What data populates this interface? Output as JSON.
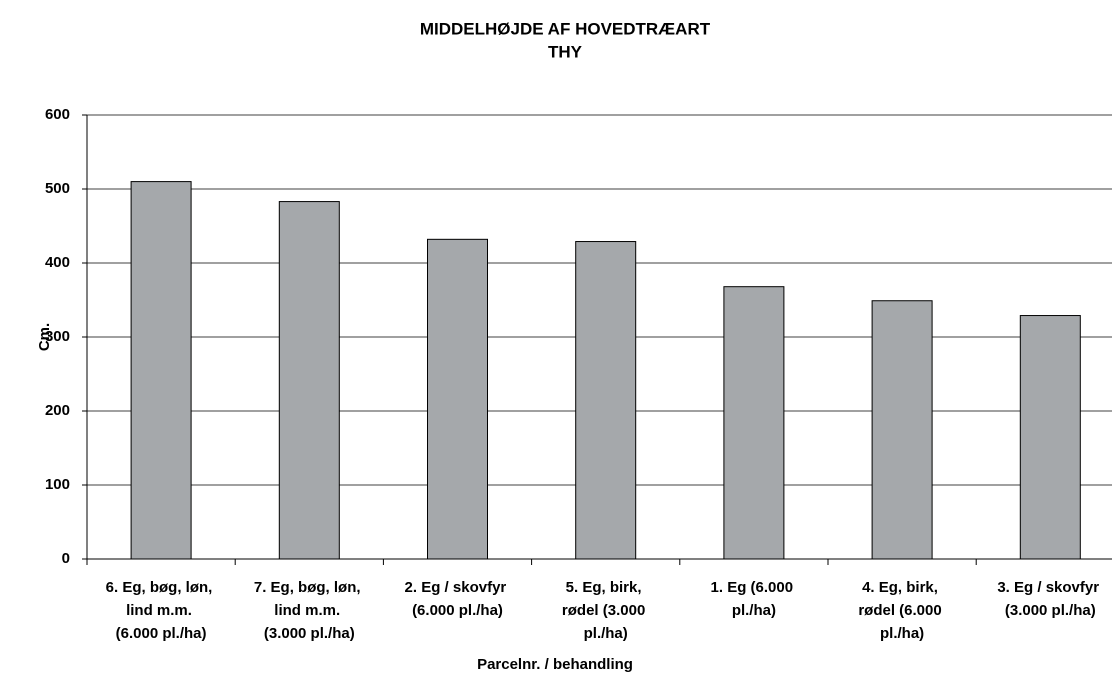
{
  "chart_data": {
    "type": "bar",
    "title": "MIDDELHØJDE AF HOVEDTRÆART",
    "subtitle": "THY",
    "y_label": "Cm.",
    "x_label": "Parcelnr. / behandling",
    "categories": [
      "6. Eg, bøg, løn,\nlind m.m.\n(6.000 pl./ha)",
      "7. Eg, bøg, løn,\nlind m.m.\n(3.000 pl./ha)",
      "2. Eg / skovfyr\n(6.000 pl./ha)",
      "5. Eg, birk,\nrødel (3.000\npl./ha)",
      "1. Eg (6.000\npl./ha)",
      "4. Eg, birk,\nrødel (6.000\npl./ha)",
      "3. Eg / skovfyr\n(3.000 pl./ha)"
    ],
    "values": [
      510,
      483,
      432,
      429,
      368,
      349,
      329
    ],
    "color": "#a5a8ab",
    "ylim": [
      0,
      600
    ],
    "yticks": [
      0,
      100,
      200,
      300,
      400,
      500,
      600
    ],
    "grid": true
  }
}
